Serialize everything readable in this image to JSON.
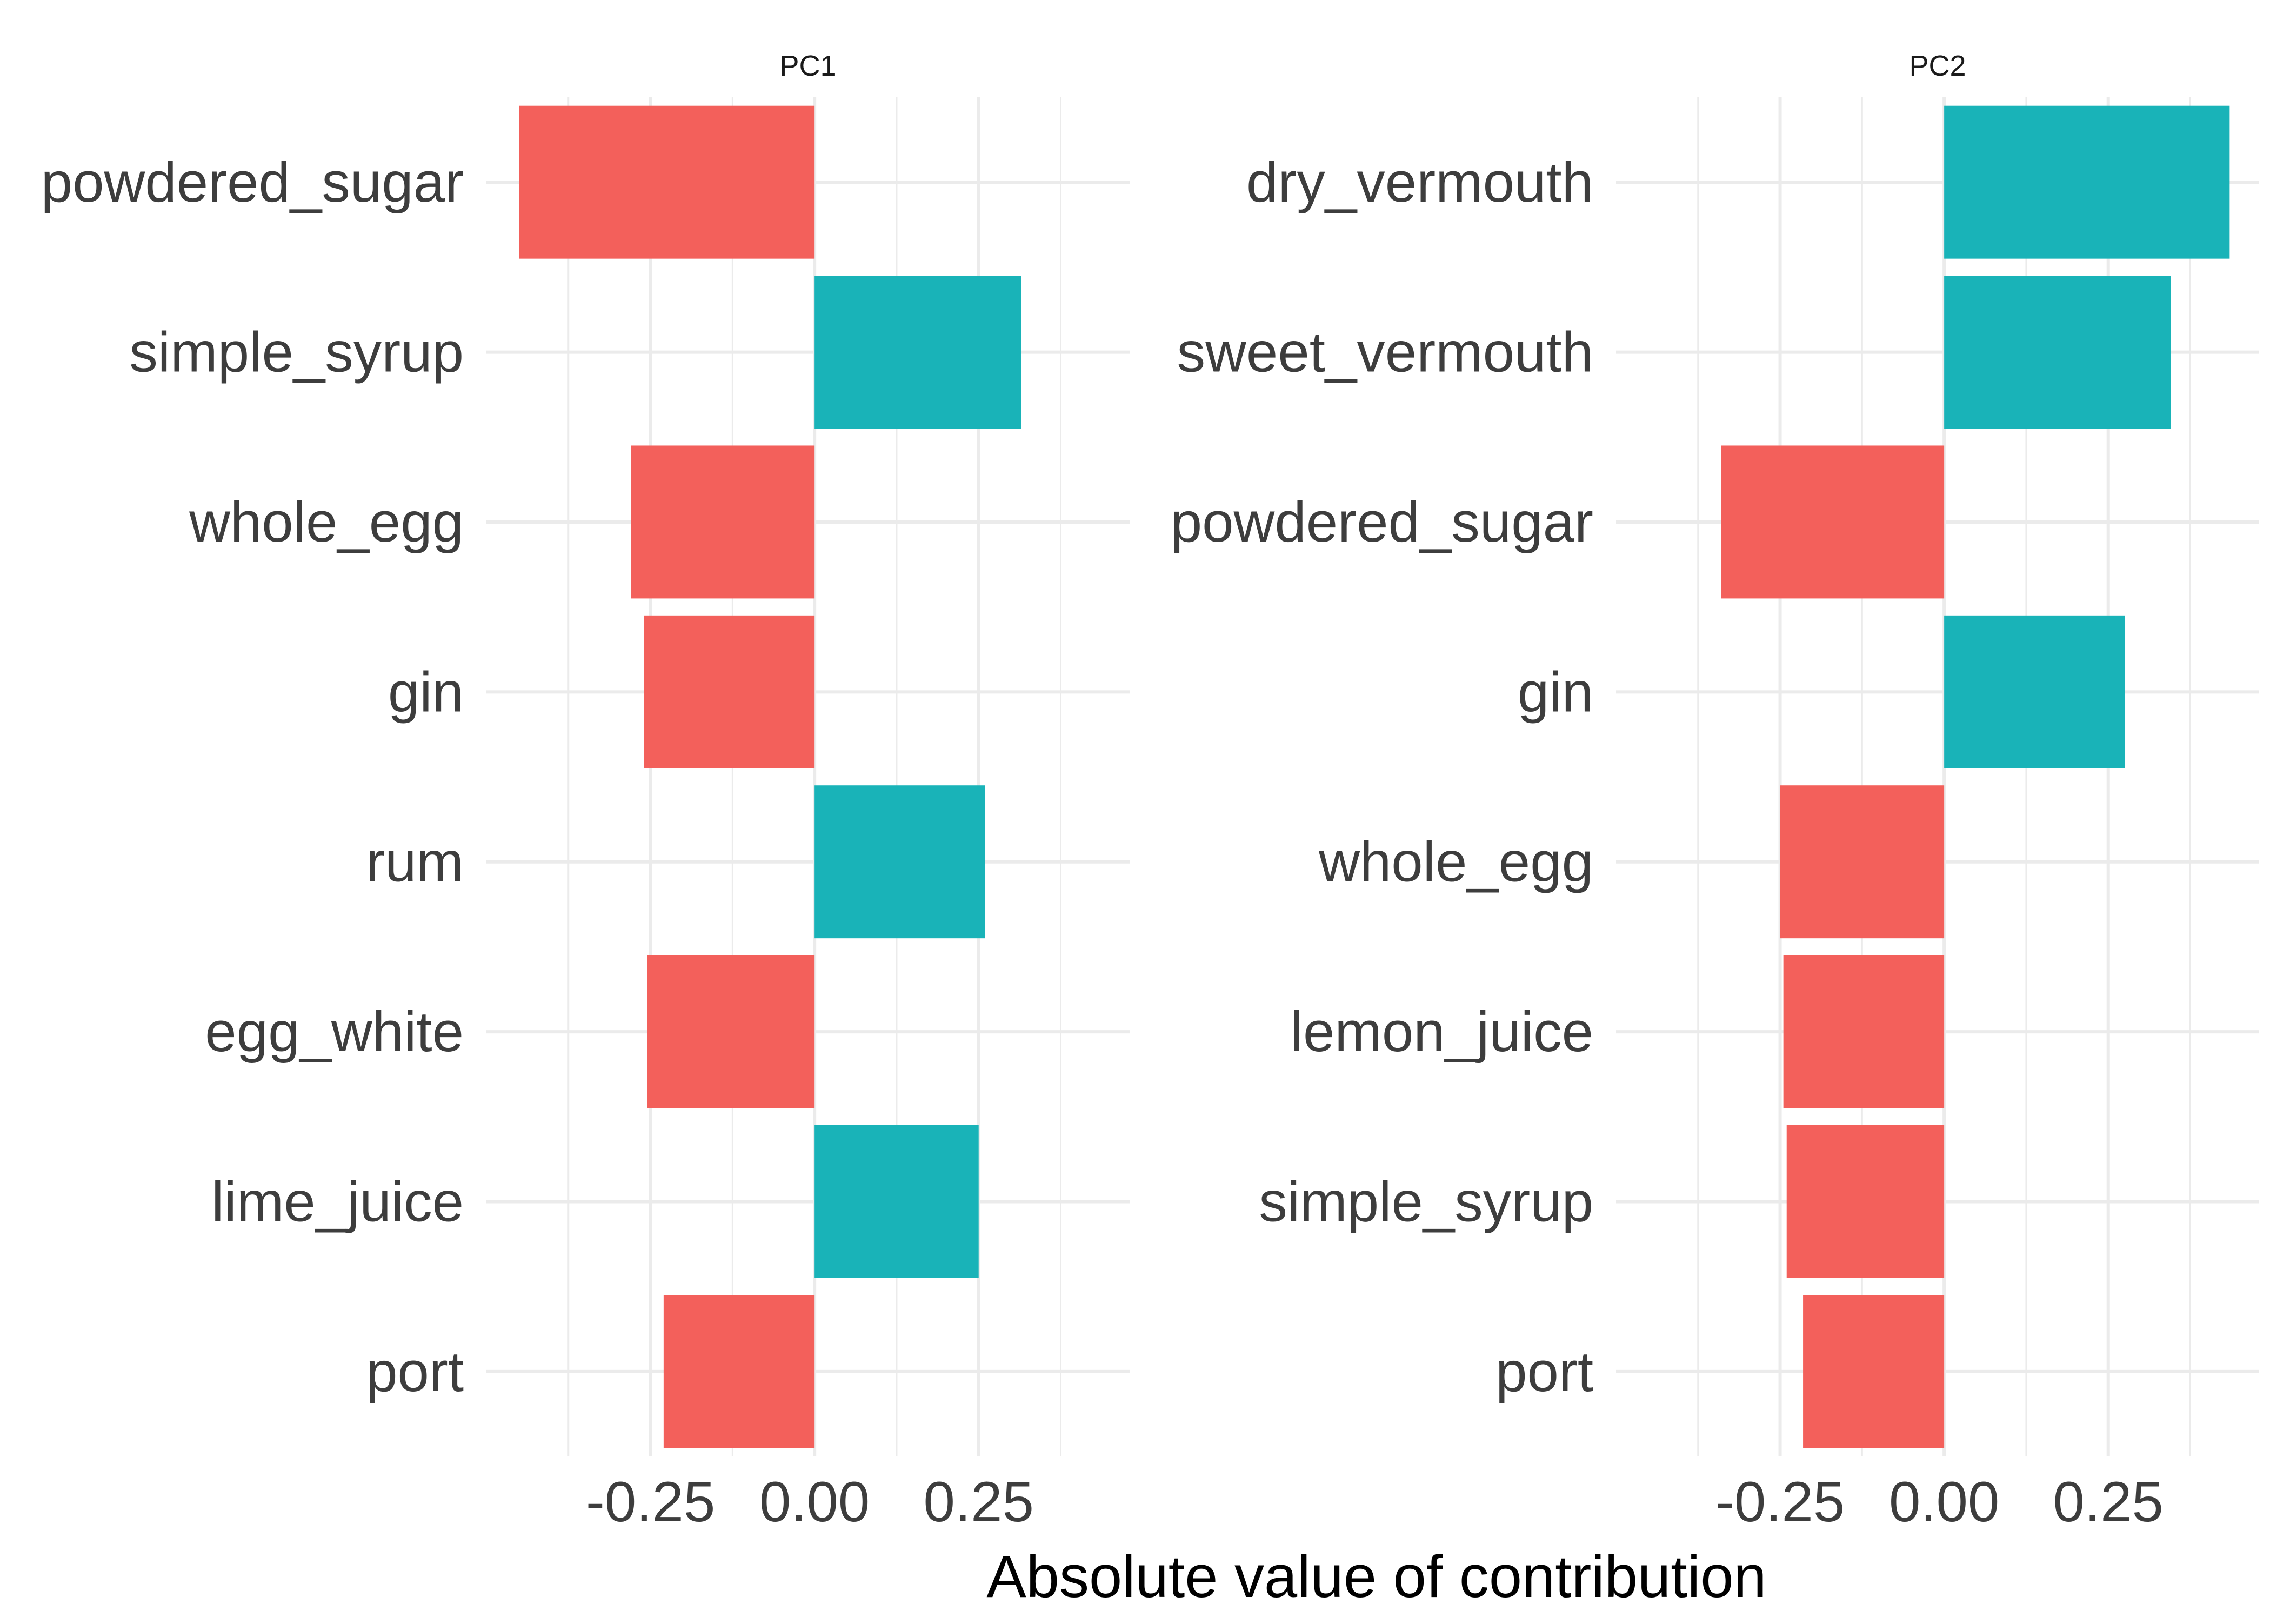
{
  "chart_data": [
    {
      "type": "bar",
      "orientation": "horizontal",
      "panel": "PC1",
      "categories": [
        "powdered_sugar",
        "simple_syrup",
        "whole_egg",
        "gin",
        "rum",
        "egg_white",
        "lime_juice",
        "port"
      ],
      "values": [
        -0.45,
        0.315,
        -0.28,
        -0.26,
        0.26,
        -0.255,
        0.25,
        -0.23
      ],
      "xlim": [
        -0.5,
        0.48
      ],
      "ticks": [
        -0.25,
        0.0,
        0.25
      ],
      "tick_labels": [
        "-0.25",
        "0.00",
        "0.25"
      ],
      "grid": true
    },
    {
      "type": "bar",
      "orientation": "horizontal",
      "panel": "PC2",
      "categories": [
        "dry_vermouth",
        "sweet_vermouth",
        "powdered_sugar",
        "gin",
        "whole_egg",
        "lemon_juice",
        "simple_syrup",
        "port"
      ],
      "values": [
        0.435,
        0.345,
        -0.34,
        0.275,
        -0.25,
        -0.245,
        -0.24,
        -0.215
      ],
      "xlim": [
        -0.5,
        0.48
      ],
      "ticks": [
        -0.25,
        0.0,
        0.25
      ],
      "tick_labels": [
        "-0.25",
        "0.00",
        "0.25"
      ],
      "grid": true
    }
  ],
  "xlabel": "Absolute value of contribution",
  "colors": {
    "positive": "#19B3B8",
    "negative": "#F3605B",
    "grid": "#EBEBEB",
    "background": "#FFFFFF"
  }
}
